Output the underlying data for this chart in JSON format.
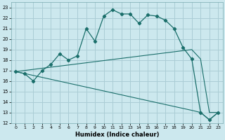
{
  "xlabel": "Humidex (Indice chaleur)",
  "background_color": "#cce8ee",
  "grid_color": "#aacdd5",
  "line_color": "#1a6e6a",
  "xlim": [
    -0.5,
    23.5
  ],
  "ylim": [
    12,
    23.5
  ],
  "xticks": [
    0,
    1,
    2,
    3,
    4,
    5,
    6,
    7,
    8,
    9,
    10,
    11,
    12,
    13,
    14,
    15,
    16,
    17,
    18,
    19,
    20,
    21,
    22,
    23
  ],
  "yticks": [
    12,
    13,
    14,
    15,
    16,
    17,
    18,
    19,
    20,
    21,
    22,
    23
  ],
  "curve1_x": [
    0,
    1,
    2,
    3,
    4,
    5,
    6,
    7,
    8,
    9,
    10,
    11,
    12,
    13,
    14,
    15,
    16,
    17,
    18,
    19,
    20,
    21,
    22,
    23
  ],
  "curve1_y": [
    16.9,
    16.7,
    16.0,
    17.0,
    17.6,
    18.6,
    18.0,
    18.4,
    21.0,
    19.8,
    22.2,
    22.8,
    22.4,
    22.4,
    21.5,
    22.3,
    22.2,
    21.8,
    21.0,
    19.2,
    18.1,
    13.0,
    12.3,
    13.0
  ],
  "curve2_x": [
    0,
    20,
    21,
    22,
    23
  ],
  "curve2_y": [
    16.9,
    19.0,
    18.1,
    13.0,
    13.0
  ],
  "curve3_x": [
    0,
    20,
    21,
    22,
    23
  ],
  "curve3_y": [
    16.9,
    13.2,
    13.0,
    12.3,
    13.0
  ]
}
